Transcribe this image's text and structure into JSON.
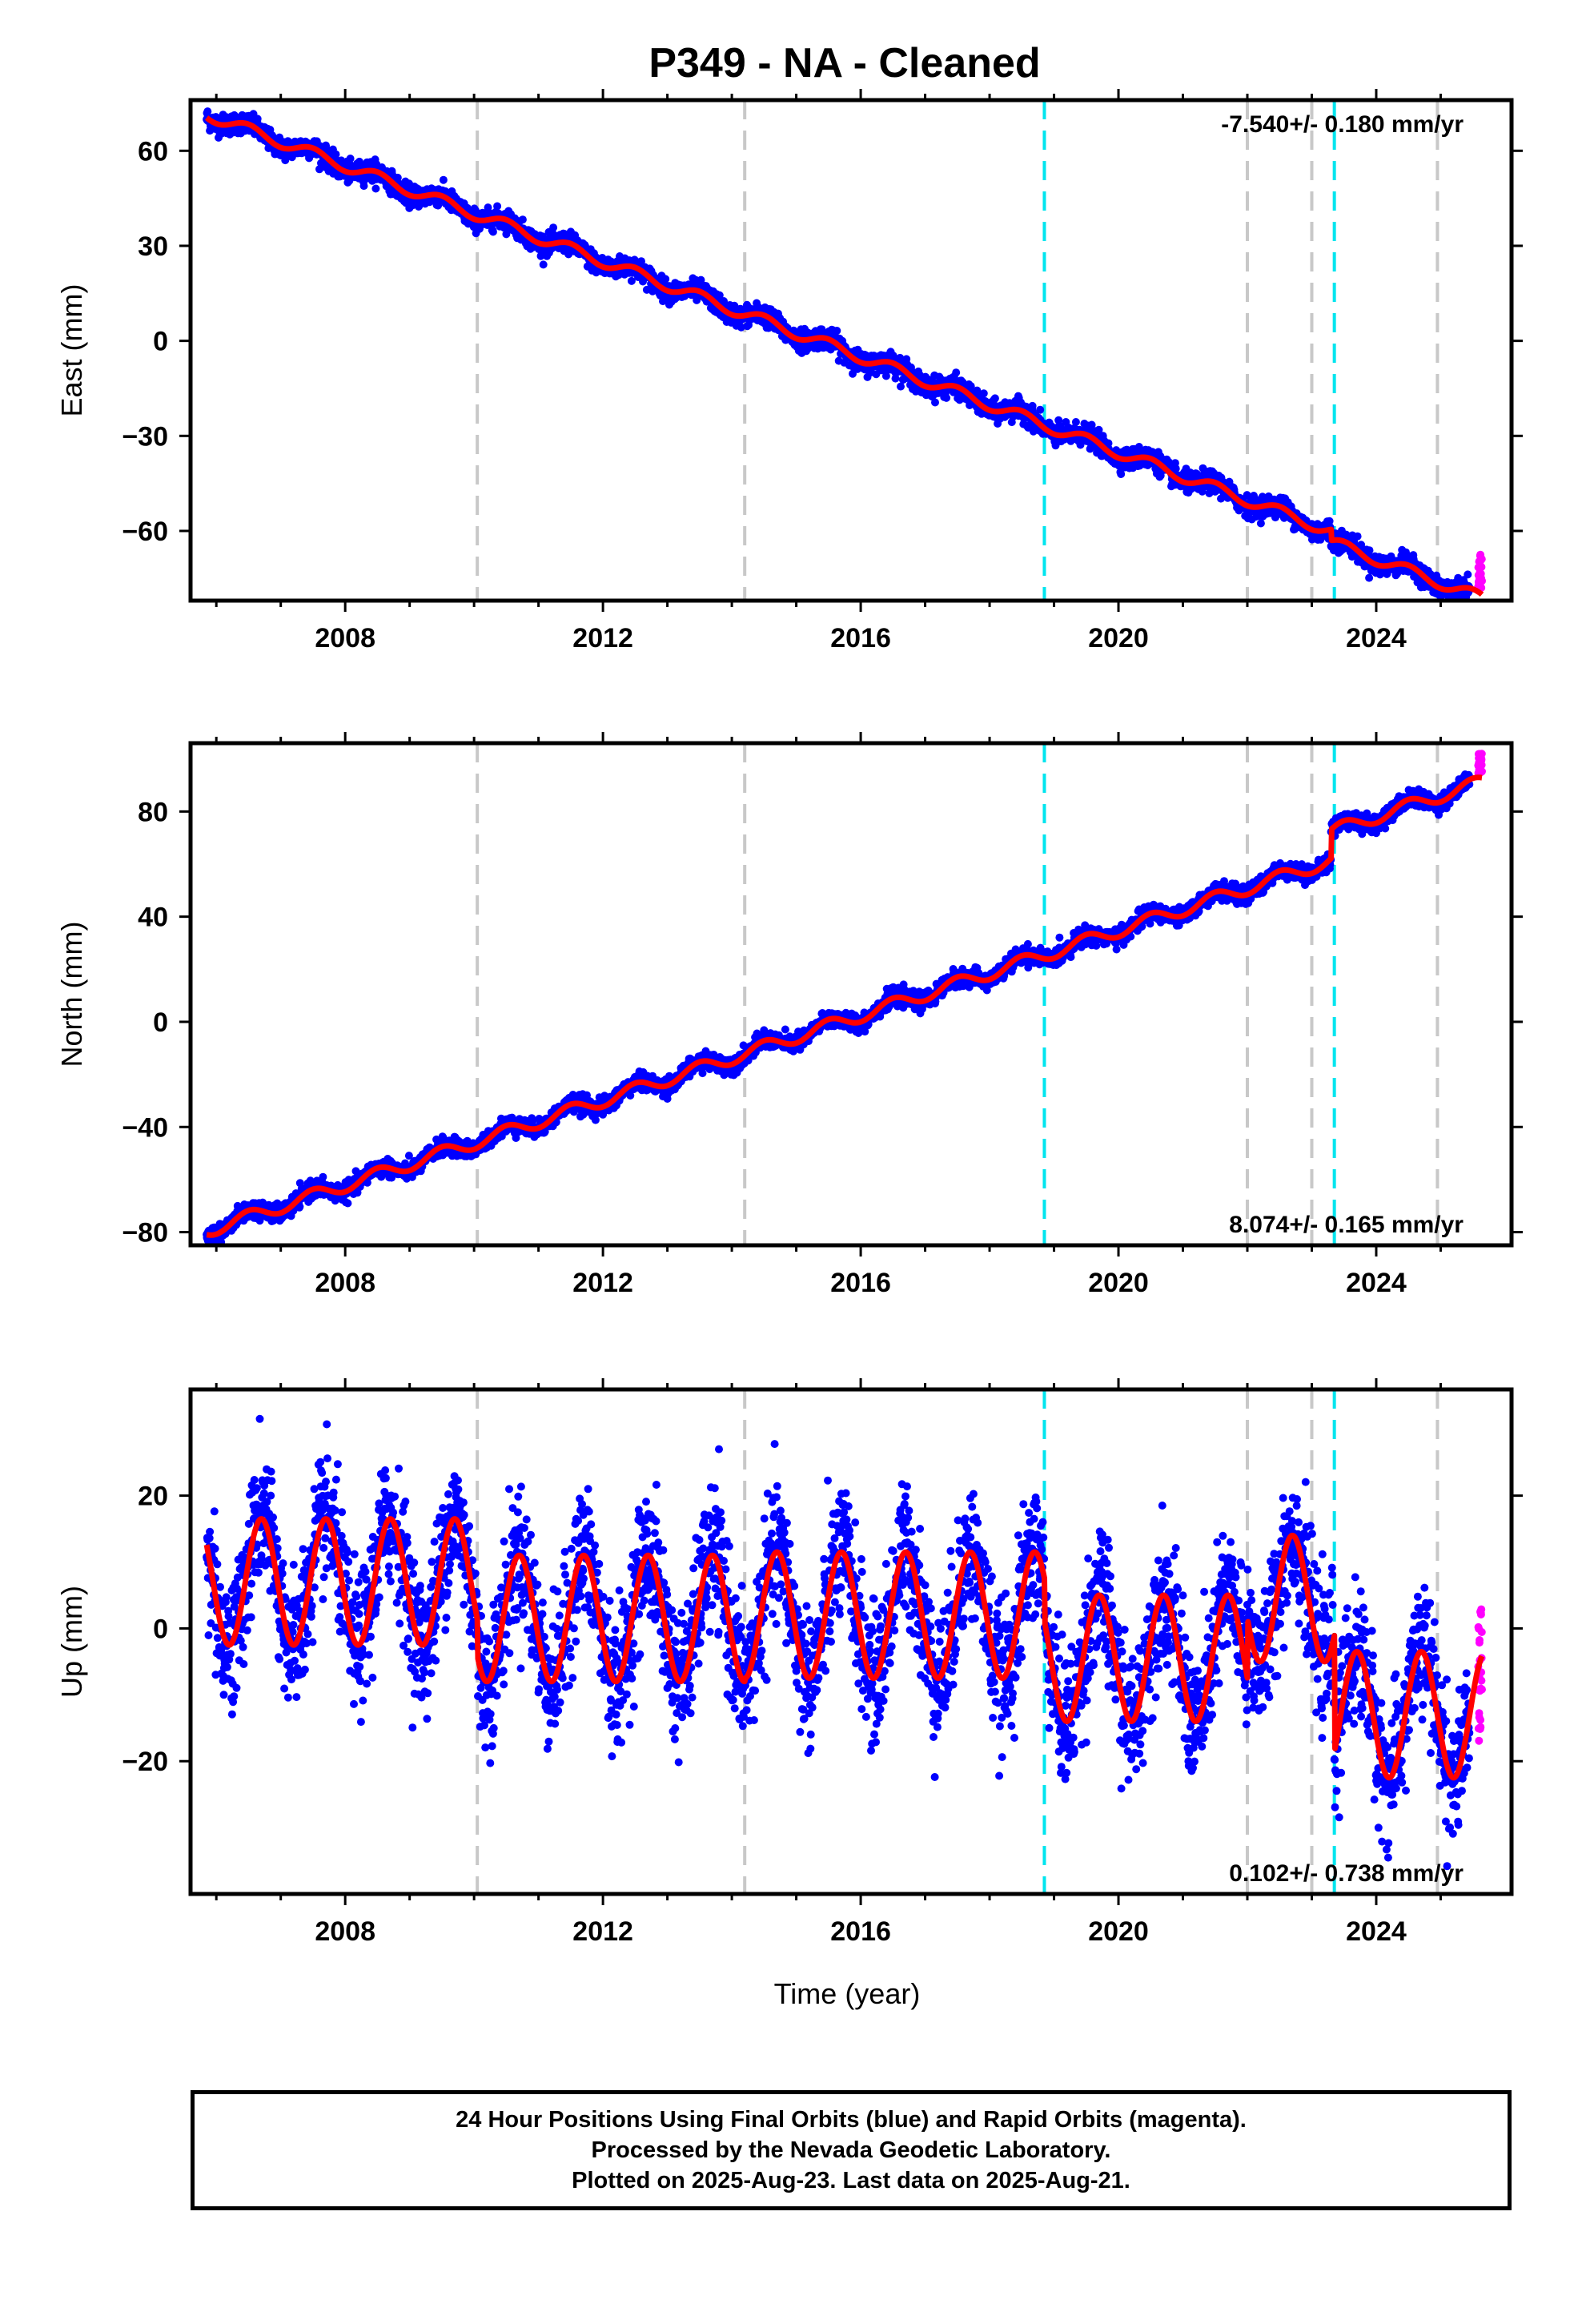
{
  "title": "P349  - NA - Cleaned",
  "colors": {
    "final_points": "#0000ff",
    "rapid_points": "#ff00ff",
    "model": "#ff0000",
    "gray_line": "#c8c8c8",
    "cyan_line": "#00e5ee"
  },
  "xlabel": "Time (year)",
  "xticks": [
    "2008",
    "2012",
    "2016",
    "2020",
    "2024"
  ],
  "footer": {
    "line1": "24 Hour Positions Using Final Orbits (blue) and Rapid Orbits (magenta).",
    "line2": "Processed by the Nevada Geodetic Laboratory.",
    "line3": "Plotted on 2025-Aug-23. Last data on 2025-Aug-21."
  },
  "chart_data": [
    {
      "type": "scatter",
      "component": "East",
      "ylabel": "East (mm)",
      "xlim": [
        2005.6,
        2026.1
      ],
      "ylim": [
        -82,
        76
      ],
      "yticks": [
        60,
        30,
        0,
        -30,
        -60
      ],
      "ytick_labels": [
        "60",
        "30",
        "0",
        "−30",
        "−60"
      ],
      "rate_text": "-7.540+/- 0.180 mm/yr",
      "rate_position": "top-right",
      "model": {
        "start_year": 2005.85,
        "start_value": 71.5,
        "velocity_mm_per_yr": -7.54,
        "seasonal_amplitude_mm": 1.8
      },
      "steps": [
        {
          "year": 2023.3,
          "offset": -3.5
        }
      ],
      "rapid_values": {
        "x_range": [
          2025.45,
          2025.64
        ],
        "y_range": [
          -78,
          -67
        ]
      },
      "gray_lines": [
        2010.05,
        2014.2,
        2022.0,
        2023.0,
        2024.95
      ],
      "cyan_lines": [
        2018.85,
        2023.35
      ]
    },
    {
      "type": "scatter",
      "component": "North",
      "ylabel": "North (mm)",
      "xlim": [
        2005.6,
        2026.1
      ],
      "ylim": [
        -85,
        106
      ],
      "yticks": [
        80,
        40,
        0,
        -40,
        -80
      ],
      "ytick_labels": [
        "80",
        "40",
        "0",
        "−40",
        "−80"
      ],
      "rate_text": "8.074+/- 0.165 mm/yr",
      "rate_position": "bottom-right",
      "model": {
        "start_year": 2005.85,
        "start_value": -79.5,
        "velocity_mm_per_yr": 8.074,
        "seasonal_amplitude_mm": 2.5
      },
      "steps": [
        {
          "year": 2023.3,
          "offset": 11.0
        }
      ],
      "rapid_values": {
        "x_range": [
          2025.45,
          2025.64
        ],
        "y_range": [
          94,
          102
        ]
      },
      "gray_lines": [
        2010.05,
        2014.2,
        2022.0,
        2023.0,
        2024.95
      ],
      "cyan_lines": [
        2018.85,
        2023.35
      ]
    },
    {
      "type": "scatter",
      "component": "Up",
      "ylabel": "Up (mm)",
      "xlim": [
        2005.6,
        2026.1
      ],
      "ylim": [
        -40,
        36
      ],
      "yticks": [
        20,
        0,
        -20
      ],
      "ytick_labels": [
        "20",
        "0",
        "−20"
      ],
      "rate_text": "0.102+/- 0.738 mm/yr",
      "rate_position": "bottom-right",
      "model_segments": [
        {
          "from": 2005.85,
          "to": 2010.05,
          "mean": 7.0,
          "amplitude": 9.5
        },
        {
          "from": 2010.05,
          "to": 2014.2,
          "mean": 1.5,
          "amplitude": 9.5
        },
        {
          "from": 2014.2,
          "to": 2018.85,
          "mean": 2.0,
          "amplitude": 9.5
        },
        {
          "from": 2018.85,
          "to": 2022.0,
          "mean": -4.5,
          "amplitude": 9.5
        },
        {
          "from": 2022.0,
          "to": 2023.35,
          "mean": 4.5,
          "amplitude": 9.5
        },
        {
          "from": 2023.35,
          "to": 2025.65,
          "mean": -13.0,
          "amplitude": 9.5
        }
      ],
      "rapid_values": {
        "x_range": [
          2025.45,
          2025.64
        ],
        "y_range": [
          -17,
          4
        ]
      },
      "gray_lines": [
        2010.05,
        2014.2,
        2022.0,
        2023.0,
        2024.95
      ],
      "cyan_lines": [
        2018.85,
        2023.35
      ]
    }
  ]
}
